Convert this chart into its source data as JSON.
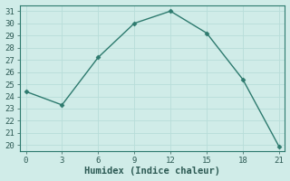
{
  "x": [
    0,
    3,
    6,
    9,
    12,
    15,
    18,
    21
  ],
  "y": [
    24.4,
    23.3,
    27.2,
    30.0,
    31.0,
    29.2,
    25.4,
    19.9
  ],
  "line_color": "#2d7a6e",
  "marker": "D",
  "marker_size": 2.5,
  "xlabel": "Humidex (Indice chaleur)",
  "ylim_min": 19.5,
  "ylim_max": 31.5,
  "xlim_min": -0.5,
  "xlim_max": 21.5,
  "yticks": [
    20,
    21,
    22,
    23,
    24,
    25,
    26,
    27,
    28,
    29,
    30,
    31
  ],
  "xticks": [
    0,
    3,
    6,
    9,
    12,
    15,
    18,
    21
  ],
  "bg_color": "#d0ece8",
  "grid_color": "#b8ddd9",
  "tick_label_color": "#2d5a54",
  "spine_color": "#2d7a6e",
  "xlabel_fontsize": 7.5,
  "tick_fontsize": 6.5,
  "line_width": 1.0
}
